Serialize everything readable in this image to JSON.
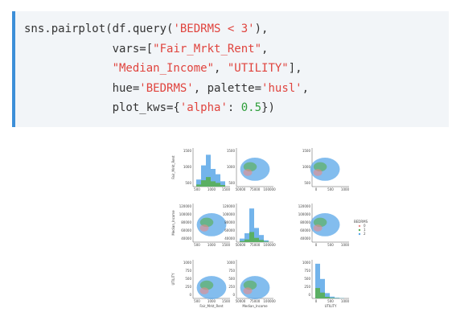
{
  "code": {
    "lines": [
      [
        {
          "text": "sns.pairplot(df.query(",
          "kind": "plain"
        },
        {
          "text": "'BEDRMS < 3'",
          "kind": "string"
        },
        {
          "text": "),",
          "kind": "plain"
        }
      ],
      [
        {
          "text": "             vars=[",
          "kind": "plain"
        },
        {
          "text": "\"Fair_Mrkt_Rent\"",
          "kind": "string"
        },
        {
          "text": ",",
          "kind": "plain"
        }
      ],
      [
        {
          "text": "             ",
          "kind": "plain"
        },
        {
          "text": "\"Median_Income\"",
          "kind": "string"
        },
        {
          "text": ", ",
          "kind": "plain"
        },
        {
          "text": "\"UTILITY\"",
          "kind": "string"
        },
        {
          "text": "],",
          "kind": "plain"
        }
      ],
      [
        {
          "text": "             hue=",
          "kind": "plain"
        },
        {
          "text": "'BEDRMS'",
          "kind": "string"
        },
        {
          "text": ", palette=",
          "kind": "plain"
        },
        {
          "text": "'husl'",
          "kind": "string"
        },
        {
          "text": ",",
          "kind": "plain"
        }
      ],
      [
        {
          "text": "             plot_kws={",
          "kind": "plain"
        },
        {
          "text": "'alpha'",
          "kind": "string"
        },
        {
          "text": ": ",
          "kind": "plain"
        },
        {
          "text": "0.5",
          "kind": "number"
        },
        {
          "text": "})",
          "kind": "plain"
        }
      ]
    ],
    "colors": {
      "plain": "#333333",
      "string": "#e0443e",
      "number": "#2e9e3a"
    }
  },
  "figure": {
    "variables": [
      "Fair_Mrkt_Rent",
      "Median_Income",
      "UTILITY"
    ],
    "xticks": [
      [
        500,
        1000,
        1500
      ],
      [
        50000,
        75000,
        100000
      ],
      [
        0,
        500,
        1000
      ]
    ],
    "yticks": [
      [
        1500,
        1000,
        500
      ],
      [
        120000,
        100000,
        80000,
        60000,
        40000
      ],
      [
        1000,
        750,
        500,
        250,
        0
      ]
    ],
    "legend": {
      "title": "BEDRMS",
      "labels": [
        0,
        1,
        2
      ],
      "colors": [
        "#e88a8a",
        "#56ae4b",
        "#5aa7e8"
      ]
    }
  }
}
